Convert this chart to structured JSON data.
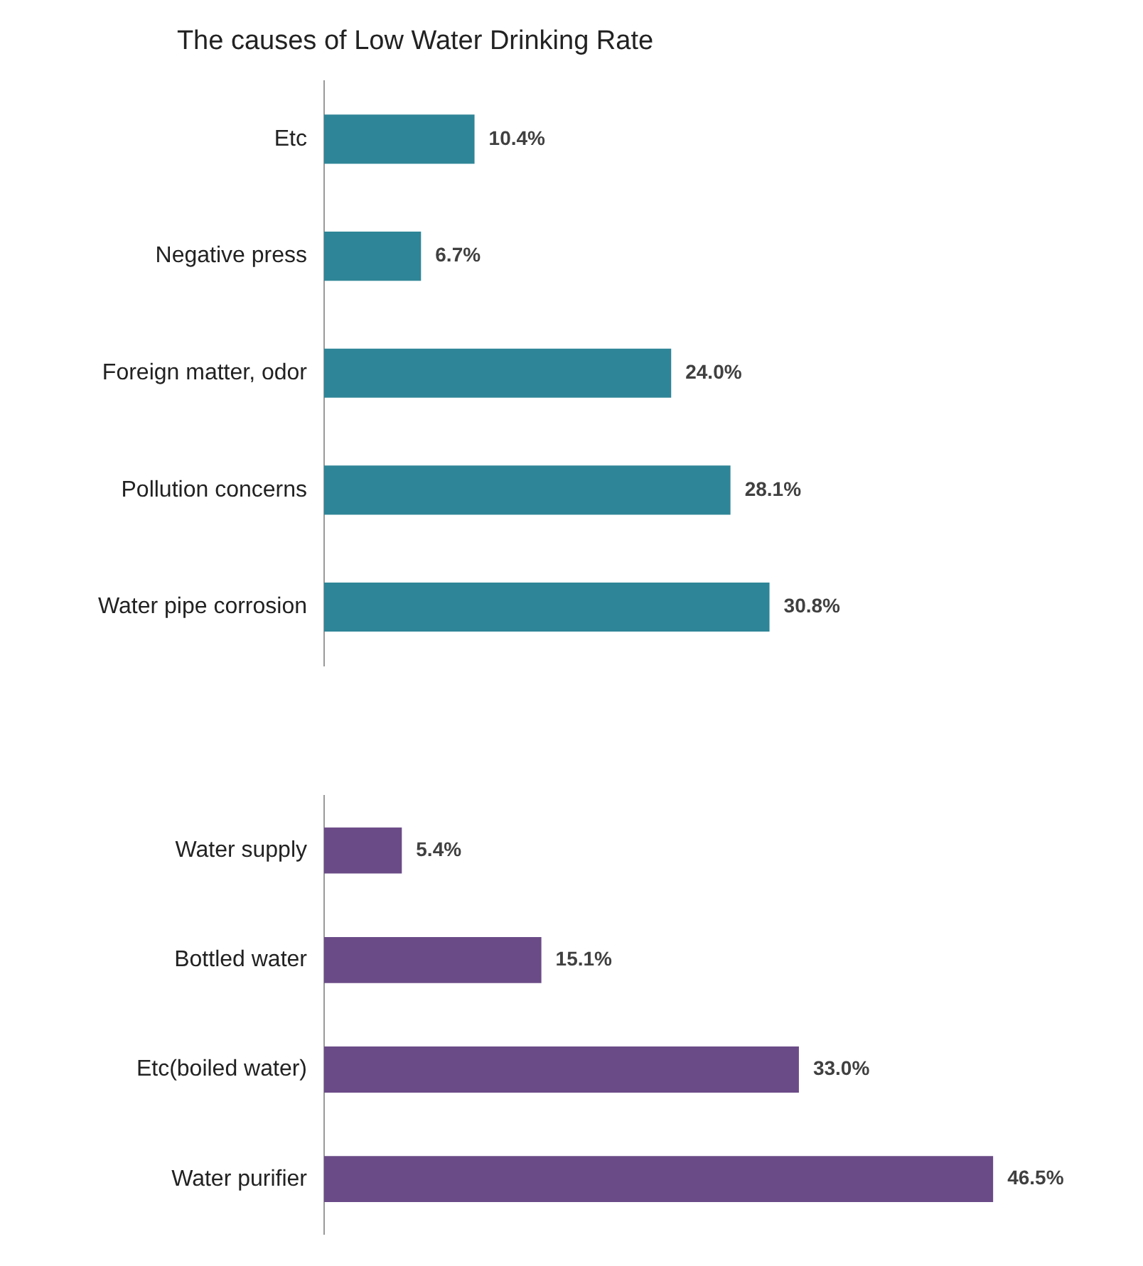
{
  "chart_data": [
    {
      "type": "bar",
      "orientation": "horizontal",
      "title": "The causes of Low Water Drinking Rate",
      "categories": [
        "Etc",
        "Negative press",
        "Foreign matter, odor",
        "Pollution concerns",
        "Water pipe corrosion"
      ],
      "values": [
        10.4,
        6.7,
        24.0,
        28.1,
        30.8
      ],
      "value_labels": [
        "10.4%",
        "6.7%",
        "24.0%",
        "28.1%",
        "30.8%"
      ],
      "color": "#2e8597",
      "tick_labels": "y",
      "legend": false
    },
    {
      "type": "bar",
      "orientation": "horizontal",
      "categories": [
        "Water supply",
        "Bottled water",
        "Etc(boiled water)",
        "Water purifier"
      ],
      "values": [
        5.4,
        15.1,
        33.0,
        46.5
      ],
      "value_labels": [
        "5.4%",
        "15.1%",
        "33.0%",
        "46.5%"
      ],
      "color": "#6b4b87",
      "tick_labels": "y",
      "legend": false
    }
  ]
}
